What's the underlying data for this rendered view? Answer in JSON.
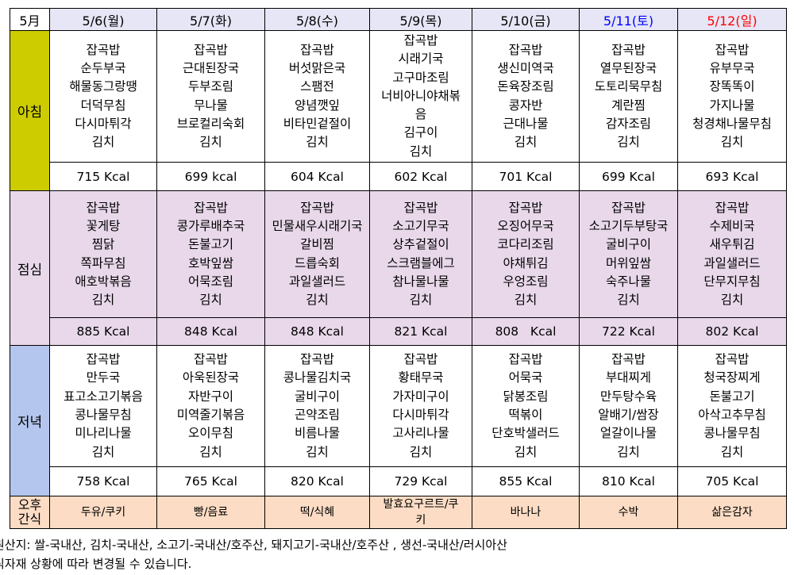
{
  "header": {
    "month": "5月"
  },
  "days": [
    {
      "label": "5/6(월)",
      "color": "#000000"
    },
    {
      "label": "5/7(화)",
      "color": "#000000"
    },
    {
      "label": "5/8(수)",
      "color": "#000000"
    },
    {
      "label": "5/9(목)",
      "color": "#000000"
    },
    {
      "label": "5/10(금)",
      "color": "#000000"
    },
    {
      "label": "5/11(토)",
      "color": "#0000ff"
    },
    {
      "label": "5/12(일)",
      "color": "#ff0000"
    }
  ],
  "meals": [
    {
      "name": "아침",
      "color": "#cccc00",
      "bg": "#ffffff",
      "items": [
        [
          "잡곡밥",
          "순두부국",
          "해물동그랑땡",
          "더덕무침",
          "다시마튀각",
          "김치"
        ],
        [
          "잡곡밥",
          "근대된장국",
          "두부조림",
          "무나물",
          "브로컬리숙회",
          "김치"
        ],
        [
          "잡곡밥",
          "버섯맑은국",
          "스팸전",
          "양념깻잎",
          "비타민겉절이",
          "김치"
        ],
        [
          "잡곡밥",
          "시래기국",
          "고구마조림",
          "너비아니야채볶",
          "음",
          "김구이",
          "김치"
        ],
        [
          "잡곡밥",
          "생신미역국",
          "돈육장조림",
          "콩자반",
          "근대나물",
          "김치"
        ],
        [
          "잡곡밥",
          "열무된장국",
          "도토리묵무침",
          "계란찜",
          "감자조림",
          "김치"
        ],
        [
          "잡곡밥",
          "유부무국",
          "장똑똑이",
          "가지나물",
          "청경채나물무침",
          "김치"
        ]
      ],
      "kcal": [
        "715 Kcal",
        "699 kcal",
        "604 Kcal",
        "602 Kcal",
        "701 Kcal",
        "699 Kcal",
        "693 Kcal"
      ]
    },
    {
      "name": "점심",
      "color": "#e8d8ea",
      "bg": "#e8d8ea",
      "items": [
        [
          "잡곡밥",
          "꽃게탕",
          "찜닭",
          "쪽파무침",
          "애호박볶음",
          "김치"
        ],
        [
          "잡곡밥",
          "콩가루배추국",
          "돈불고기",
          "호박잎쌈",
          "어묵조림",
          "김치"
        ],
        [
          "잡곡밥",
          "민물새우시래기국",
          "갈비찜",
          "드릅숙회",
          "과일샐러드",
          "김치"
        ],
        [
          "잡곡밥",
          "소고기무국",
          "상추겉절이",
          "스크램블에그",
          "참나물나물",
          "김치"
        ],
        [
          "잡곡밥",
          "오징어무국",
          "코다리조림",
          "야채튀김",
          "우엉조림",
          "김치"
        ],
        [
          "잡곡밥",
          "소고기두부탕국",
          "굴비구이",
          "머위잎쌈",
          "숙주나물",
          "김치"
        ],
        [
          "잡곡밥",
          "수제비국",
          "새우튀김",
          "과일샐러드",
          "단무지무침",
          "김치"
        ]
      ],
      "kcal": [
        "885 Kcal",
        "848 Kcal",
        "848 Kcal",
        "821 Kcal",
        "808   Kcal",
        "722 Kcal",
        "802 Kcal"
      ]
    },
    {
      "name": "저녁",
      "color": "#b4c6ee",
      "bg": "#ffffff",
      "items": [
        [
          "잡곡밥",
          "만두국",
          "표고소고기볶음",
          "콩나물무침",
          "미나리나물",
          "김치"
        ],
        [
          "잡곡밥",
          "아욱된장국",
          "자반구이",
          "미역줄기볶음",
          "오이무침",
          "김치"
        ],
        [
          "잡곡밥",
          "콩나물김치국",
          "굴비구이",
          "곤약조림",
          "비름나물",
          "김치"
        ],
        [
          "잡곡밥",
          "황태무국",
          "가자미구이",
          "다시마튀각",
          "고사리나물",
          "김치"
        ],
        [
          "잡곡밥",
          "어묵국",
          "닭봉조림",
          "떡볶이",
          "단호박샐러드",
          "김치"
        ],
        [
          "잡곡밥",
          "부대찌게",
          "만두탕수육",
          "알배기/쌈장",
          "얼갈이나물",
          "김치"
        ],
        [
          "잡곡밥",
          "청국장찌게",
          "돈불고기",
          "아삭고추무침",
          "콩나물무침",
          "김치"
        ]
      ],
      "kcal": [
        "758 Kcal",
        "765 Kcal",
        "820 Kcal",
        "729 Kcal",
        "855 Kcal",
        "810 Kcal",
        "705 Kcal"
      ]
    }
  ],
  "snack": {
    "label": "오후\n간식",
    "color": "#fcdcc4",
    "items": [
      "두유/쿠키",
      "빵/음료",
      "떡/식혜",
      "발효요구르트/쿠\n키",
      "바나나",
      "수박",
      "삶은감자"
    ]
  },
  "footer": {
    "origin": "원산지: 쌀-국내산,  김치-국내산,  소고기-국내산/호주산,  돼지고기-국내산/호주산 ,  생선-국내산/러시아산",
    "notice": "식자재 상황에 따라 변경될 수 있습니다."
  }
}
